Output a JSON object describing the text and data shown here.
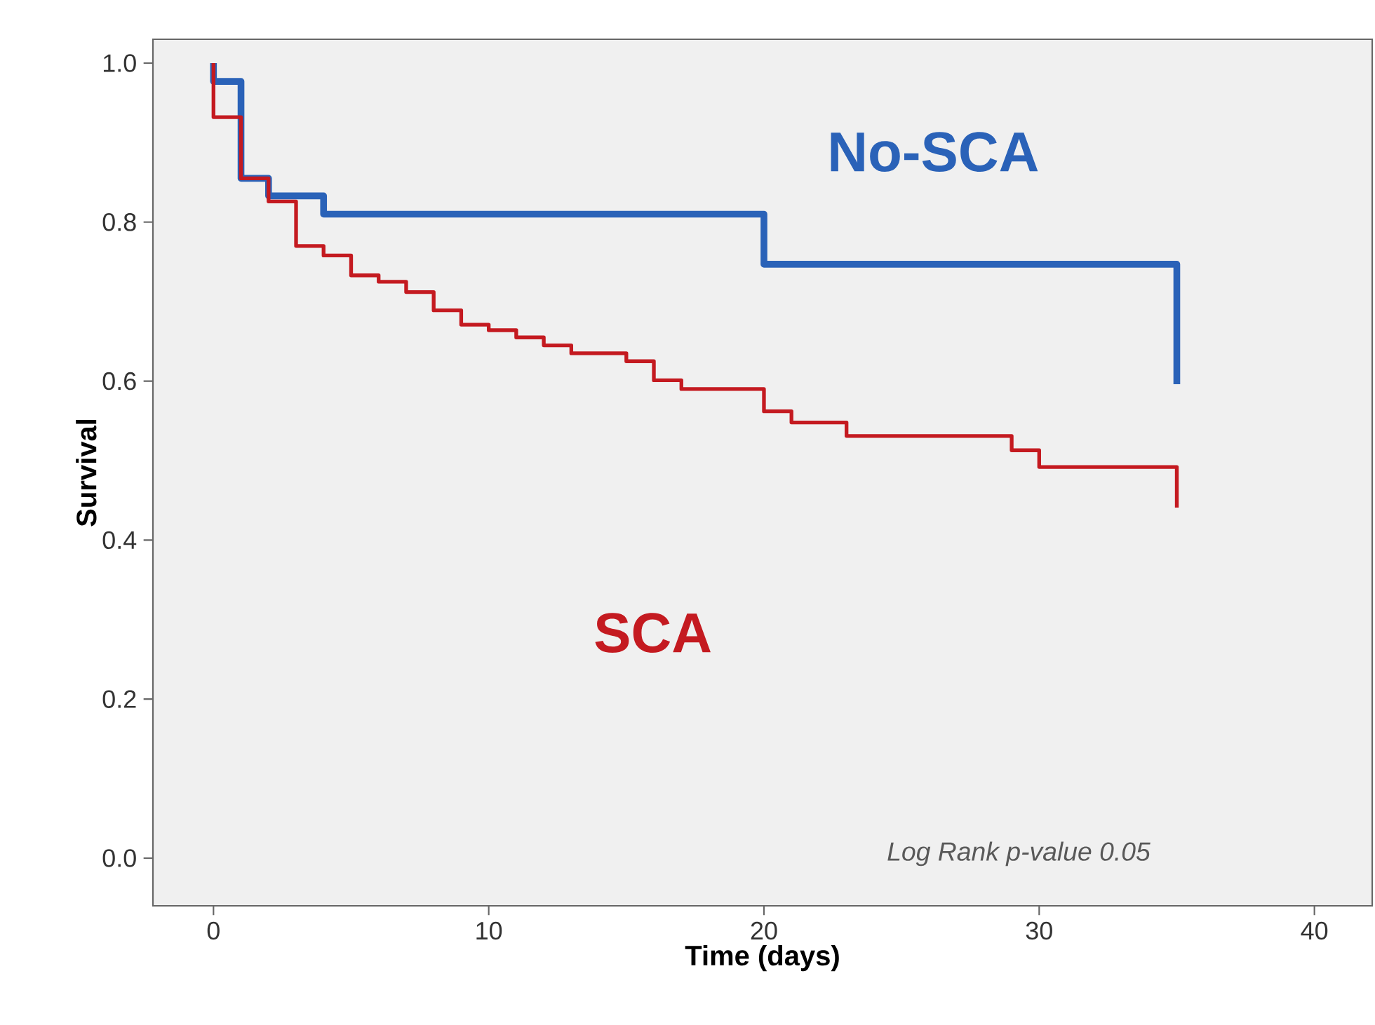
{
  "chart_data": {
    "type": "step",
    "xlabel": "Time (days)",
    "ylabel": "Survival",
    "xlim": [
      -2.2,
      42.1
    ],
    "ylim": [
      -0.06,
      1.03
    ],
    "xticks": [
      0,
      10,
      20,
      30,
      40
    ],
    "yticks": [
      {
        "value": 0,
        "label": "0.0"
      },
      {
        "value": 0.2,
        "label": "0.2"
      },
      {
        "value": 0.4,
        "label": "0.4"
      },
      {
        "value": 0.6,
        "label": "0.6"
      },
      {
        "value": 0.8,
        "label": "0.8"
      },
      {
        "value": 1.0,
        "label": "1.0"
      }
    ],
    "grid": false,
    "legend": false,
    "series": [
      {
        "name": "No-SCA",
        "color": "#2a62b8",
        "x": [
          0,
          0,
          1,
          2,
          4,
          20,
          35
        ],
        "values": [
          1.0,
          0.977,
          0.855,
          0.833,
          0.81,
          0.747,
          0.596
        ]
      },
      {
        "name": "SCA",
        "color": "#c41a20",
        "x": [
          0,
          0,
          1,
          2,
          3,
          4,
          5,
          6,
          7,
          8,
          9,
          10,
          11,
          12,
          13,
          15,
          16,
          17,
          20,
          21,
          23,
          29,
          30,
          35
        ],
        "values": [
          1.0,
          0.932,
          0.855,
          0.826,
          0.77,
          0.758,
          0.733,
          0.725,
          0.712,
          0.689,
          0.671,
          0.664,
          0.655,
          0.645,
          0.635,
          0.625,
          0.601,
          0.59,
          0.562,
          0.548,
          0.531,
          0.513,
          0.492,
          0.441
        ]
      }
    ],
    "annotations": [
      "Log Rank p-value 0.05"
    ]
  }
}
